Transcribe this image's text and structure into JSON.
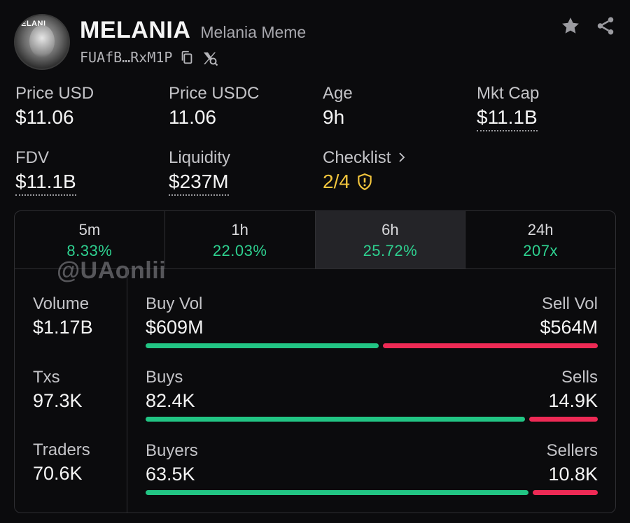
{
  "token": {
    "avatar_text": "ELANI",
    "ticker": "MELANIA",
    "name": "Melania Meme",
    "address": "FUAfB…RxM1P"
  },
  "icons": {
    "copy": "copy-icon",
    "search_x": "x-search-icon",
    "star": "star-icon",
    "share": "share-icon",
    "chevron": "chevron-right-icon",
    "shield": "shield-warning-icon"
  },
  "stats": {
    "price_usd": {
      "label": "Price USD",
      "value": "$11.06"
    },
    "price_usdc": {
      "label": "Price USDC",
      "value": "11.06"
    },
    "age": {
      "label": "Age",
      "value": "9h"
    },
    "mkt_cap": {
      "label": "Mkt Cap",
      "value": "$11.1B"
    },
    "fdv": {
      "label": "FDV",
      "value": "$11.1B"
    },
    "liquidity": {
      "label": "Liquidity",
      "value": "$237M"
    },
    "checklist": {
      "label": "Checklist",
      "value": "2/4"
    }
  },
  "tabs": [
    {
      "label": "5m",
      "change": "8.33%"
    },
    {
      "label": "1h",
      "change": "22.03%"
    },
    {
      "label": "6h",
      "change": "25.72%",
      "active": true
    },
    {
      "label": "24h",
      "change": "207x"
    }
  ],
  "watermark": "@UAonlii",
  "left_stats": {
    "volume": {
      "label": "Volume",
      "value": "$1.17B"
    },
    "txs": {
      "label": "Txs",
      "value": "97.3K"
    },
    "traders": {
      "label": "Traders",
      "value": "70.6K"
    }
  },
  "rows": {
    "vol": {
      "left_label": "Buy Vol",
      "left_value": "$609M",
      "right_label": "Sell Vol",
      "right_value": "$564M",
      "buy_fraction": 0.52
    },
    "txs": {
      "left_label": "Buys",
      "left_value": "82.4K",
      "right_label": "Sells",
      "right_value": "14.9K",
      "buy_fraction": 0.847
    },
    "traders": {
      "left_label": "Buyers",
      "left_value": "63.5K",
      "right_label": "Sellers",
      "right_value": "10.8K",
      "buy_fraction": 0.855
    }
  },
  "colors": {
    "buy": "#22c584",
    "sell": "#ee2a55",
    "positive": "#2ed190",
    "warning": "#f2c53d"
  }
}
